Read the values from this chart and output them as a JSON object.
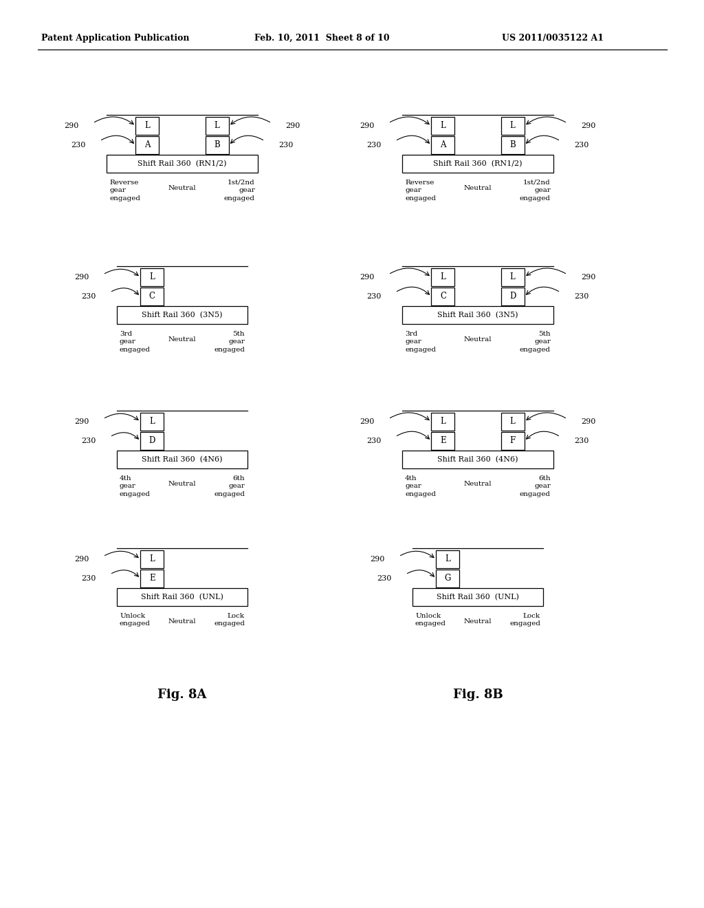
{
  "header_left": "Patent Application Publication",
  "header_center": "Feb. 10, 2011  Sheet 8 of 10",
  "header_right": "US 2011/0035122 A1",
  "fig_a_label": "Fig. 8A",
  "fig_b_label": "Fig. 8B",
  "background": "#ffffff",
  "diagrams_A": [
    {
      "title": "Shift Rail 360  (RN1/2)",
      "sensors_top": [
        "L",
        "L"
      ],
      "sensors_top_labels": [
        "290",
        "290"
      ],
      "sensors_bottom": [
        "A",
        "B"
      ],
      "sensors_bottom_labels": [
        "230",
        "230"
      ],
      "left_label": [
        "Reverse",
        "gear",
        "engaged"
      ],
      "center_label": "Neutral",
      "right_label": [
        "1st/2nd",
        "gear",
        "engaged"
      ],
      "n": 2
    },
    {
      "title": "Shift Rail 360  (3N5)",
      "sensors_top": [
        "L"
      ],
      "sensors_top_labels": [
        "290"
      ],
      "sensors_bottom": [
        "C"
      ],
      "sensors_bottom_labels": [
        "230"
      ],
      "left_label": [
        "3rd",
        "gear",
        "engaged"
      ],
      "center_label": "Neutral",
      "right_label": [
        "5th",
        "gear",
        "engaged"
      ],
      "n": 1
    },
    {
      "title": "Shift Rail 360  (4N6)",
      "sensors_top": [
        "L"
      ],
      "sensors_top_labels": [
        "290"
      ],
      "sensors_bottom": [
        "D"
      ],
      "sensors_bottom_labels": [
        "230"
      ],
      "left_label": [
        "4th",
        "gear",
        "engaged"
      ],
      "center_label": "Neutral",
      "right_label": [
        "6th",
        "gear",
        "engaged"
      ],
      "n": 1
    },
    {
      "title": "Shift Rail 360  (UNL)",
      "sensors_top": [
        "L"
      ],
      "sensors_top_labels": [
        "290"
      ],
      "sensors_bottom": [
        "E"
      ],
      "sensors_bottom_labels": [
        "230"
      ],
      "left_label": [
        "Unlock",
        "engaged"
      ],
      "center_label": "Neutral",
      "right_label": [
        "Lock",
        "engaged"
      ],
      "n": 1
    }
  ],
  "diagrams_B": [
    {
      "title": "Shift Rail 360  (RN1/2)",
      "sensors_top": [
        "L",
        "L"
      ],
      "sensors_top_labels": [
        "290",
        "290"
      ],
      "sensors_bottom": [
        "A",
        "B"
      ],
      "sensors_bottom_labels": [
        "230",
        "230"
      ],
      "left_label": [
        "Reverse",
        "gear",
        "engaged"
      ],
      "center_label": "Neutral",
      "right_label": [
        "1st/2nd",
        "gear",
        "engaged"
      ],
      "n": 2
    },
    {
      "title": "Shift Rail 360  (3N5)",
      "sensors_top": [
        "L",
        "L"
      ],
      "sensors_top_labels": [
        "290",
        "290"
      ],
      "sensors_bottom": [
        "C",
        "D"
      ],
      "sensors_bottom_labels": [
        "230",
        "230"
      ],
      "left_label": [
        "3rd",
        "gear",
        "engaged"
      ],
      "center_label": "Neutral",
      "right_label": [
        "5th",
        "gear",
        "engaged"
      ],
      "n": 2
    },
    {
      "title": "Shift Rail 360  (4N6)",
      "sensors_top": [
        "L",
        "L"
      ],
      "sensors_top_labels": [
        "290",
        "290"
      ],
      "sensors_bottom": [
        "E",
        "F"
      ],
      "sensors_bottom_labels": [
        "230",
        "230"
      ],
      "left_label": [
        "4th",
        "gear",
        "engaged"
      ],
      "center_label": "Neutral",
      "right_label": [
        "6th",
        "gear",
        "engaged"
      ],
      "n": 2
    },
    {
      "title": "Shift Rail 360  (UNL)",
      "sensors_top": [
        "L"
      ],
      "sensors_top_labels": [
        "290"
      ],
      "sensors_bottom": [
        "G"
      ],
      "sensors_bottom_labels": [
        "230"
      ],
      "left_label": [
        "Unlock",
        "engaged"
      ],
      "center_label": "Neutral",
      "right_label": [
        "Lock",
        "engaged"
      ],
      "n": 1
    }
  ]
}
